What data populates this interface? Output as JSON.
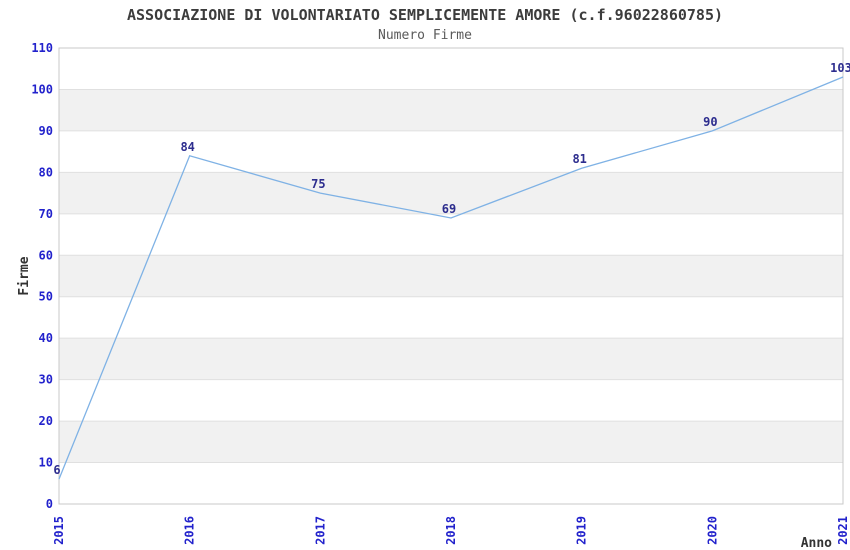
{
  "header": {
    "title": "ASSOCIAZIONE DI VOLONTARIATO SEMPLICEMENTE AMORE (c.f.96022860785)",
    "subtitle": "Numero Firme"
  },
  "chart_data": {
    "type": "line",
    "title": "ASSOCIAZIONE DI VOLONTARIATO SEMPLICEMENTE AMORE (c.f.96022860785)",
    "subtitle": "Numero Firme",
    "categories": [
      "2015",
      "2016",
      "2017",
      "2018",
      "2019",
      "2020",
      "2021"
    ],
    "series": [
      {
        "name": "Numero Firme",
        "values": [
          6,
          84,
          75,
          69,
          81,
          90,
          103
        ]
      }
    ],
    "xlabel": "Anno",
    "ylabel": "Firme",
    "ylim": [
      0,
      110
    ],
    "ytick_step": 10,
    "yticks": [
      0,
      10,
      20,
      30,
      40,
      50,
      60,
      70,
      80,
      90,
      100,
      110
    ],
    "grid": "horizontal-gridlines-with-alternating-bands",
    "legend": "none",
    "x_tick_rotation_deg": 90,
    "colors": {
      "line": "#7FB2E5",
      "tick_label": "#2222CC",
      "data_label": "#2D2D8E",
      "band": "#F1F1F1",
      "gridline": "#E0E0E0",
      "plot_border": "#C9C9C9",
      "title_text": "#3C3C3C",
      "subtitle_text": "#5A5A5A",
      "axis_label_text": "#333333",
      "background": "#FFFFFF"
    }
  }
}
